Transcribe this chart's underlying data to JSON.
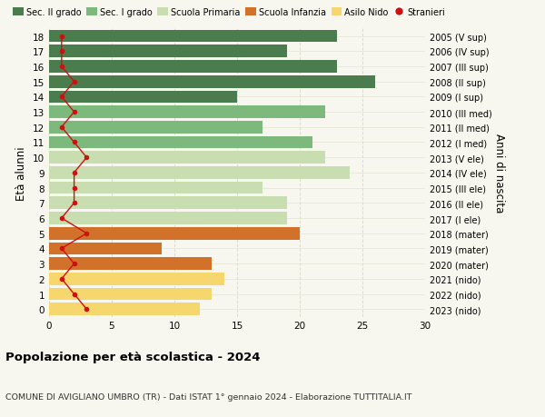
{
  "ages": [
    18,
    17,
    16,
    15,
    14,
    13,
    12,
    11,
    10,
    9,
    8,
    7,
    6,
    5,
    4,
    3,
    2,
    1,
    0
  ],
  "right_labels": [
    "2005 (V sup)",
    "2006 (IV sup)",
    "2007 (III sup)",
    "2008 (II sup)",
    "2009 (I sup)",
    "2010 (III med)",
    "2011 (II med)",
    "2012 (I med)",
    "2013 (V ele)",
    "2014 (IV ele)",
    "2015 (III ele)",
    "2016 (II ele)",
    "2017 (I ele)",
    "2018 (mater)",
    "2019 (mater)",
    "2020 (mater)",
    "2021 (nido)",
    "2022 (nido)",
    "2023 (nido)"
  ],
  "bar_values": [
    23,
    19,
    23,
    26,
    15,
    22,
    17,
    21,
    22,
    24,
    17,
    19,
    19,
    20,
    9,
    13,
    14,
    13,
    12
  ],
  "bar_colors": [
    "#4a7c4e",
    "#4a7c4e",
    "#4a7c4e",
    "#4a7c4e",
    "#4a7c4e",
    "#7db87d",
    "#7db87d",
    "#7db87d",
    "#c8deb0",
    "#c8deb0",
    "#c8deb0",
    "#c8deb0",
    "#c8deb0",
    "#d2722a",
    "#d2722a",
    "#d2722a",
    "#f5d76e",
    "#f5d76e",
    "#f5d76e"
  ],
  "stranieri_values": [
    1,
    1,
    1,
    2,
    1,
    2,
    1,
    2,
    3,
    2,
    2,
    2,
    1,
    3,
    1,
    2,
    1,
    2,
    3
  ],
  "ylabel": "Età alunni",
  "right_ylabel": "Anni di nascita",
  "xlim": [
    0,
    30
  ],
  "ylim": [
    -0.5,
    18.5
  ],
  "title": "Popolazione per età scolastica - 2024",
  "subtitle": "COMUNE DI AVIGLIANO UMBRO (TR) - Dati ISTAT 1° gennaio 2024 - Elaborazione TUTTITALIA.IT",
  "legend_labels": [
    "Sec. II grado",
    "Sec. I grado",
    "Scuola Primaria",
    "Scuola Infanzia",
    "Asilo Nido",
    "Stranieri"
  ],
  "legend_colors": [
    "#4a7c4e",
    "#7db87d",
    "#c8deb0",
    "#d2722a",
    "#f5d76e",
    "#cc1111"
  ],
  "bg_color": "#f7f7ef",
  "grid_color": "#ddddcc",
  "stranieri_color": "#cc1111",
  "bar_height": 0.82,
  "tick_fontsize": 7.5,
  "label_fontsize": 8.5
}
